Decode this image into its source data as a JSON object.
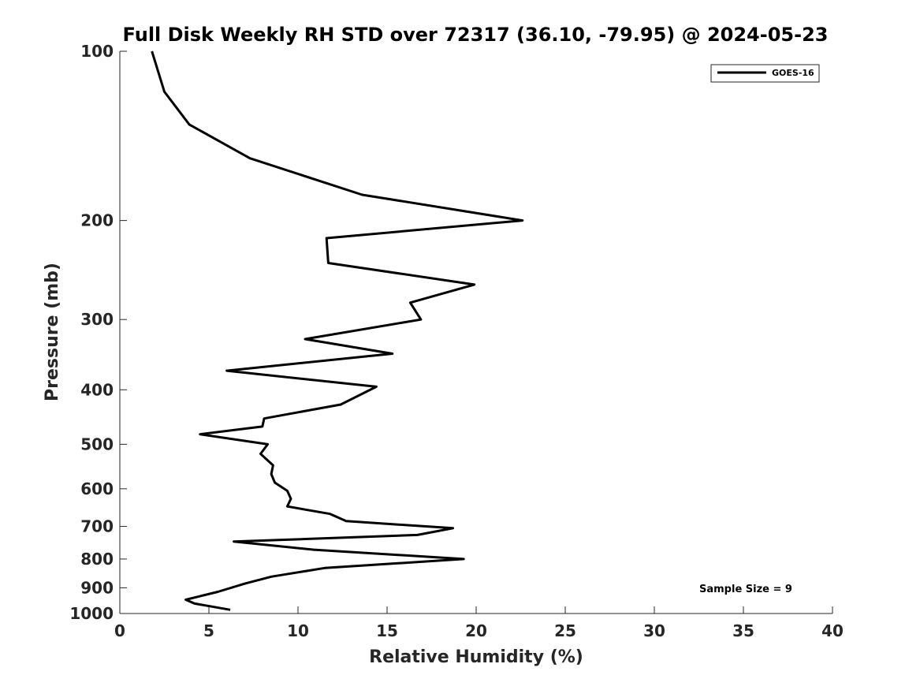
{
  "chart_data": {
    "type": "line",
    "title": "Full Disk Weekly RH STD over 72317 (36.10, -79.95) @ 2024-05-23",
    "xlabel": "Relative Humidity (%)",
    "ylabel": "Pressure (mb)",
    "xlim": [
      0,
      40
    ],
    "ylim": [
      1000,
      100
    ],
    "y_scale": "log",
    "y_reversed": true,
    "x_ticks": [
      "0",
      "5",
      "10",
      "15",
      "20",
      "25",
      "30",
      "35",
      "40"
    ],
    "y_ticks": [
      "100",
      "200",
      "300",
      "400",
      "500",
      "600",
      "700",
      "800",
      "900",
      "1000"
    ],
    "grid": false,
    "legend_position": "top-right",
    "series": [
      {
        "name": "GOES-16",
        "color": "#000000",
        "points": [
          [
            1.8,
            100
          ],
          [
            2.5,
            118
          ],
          [
            3.9,
            135
          ],
          [
            7.3,
            155
          ],
          [
            13.6,
            180
          ],
          [
            22.6,
            200
          ],
          [
            11.6,
            215
          ],
          [
            11.7,
            238
          ],
          [
            19.9,
            260
          ],
          [
            16.3,
            280
          ],
          [
            16.9,
            300
          ],
          [
            10.4,
            325
          ],
          [
            15.3,
            345
          ],
          [
            6.0,
            370
          ],
          [
            14.4,
            395
          ],
          [
            12.4,
            425
          ],
          [
            8.1,
            450
          ],
          [
            8.0,
            465
          ],
          [
            4.5,
            480
          ],
          [
            8.3,
            500
          ],
          [
            7.9,
            520
          ],
          [
            8.6,
            545
          ],
          [
            8.5,
            565
          ],
          [
            8.7,
            585
          ],
          [
            9.4,
            605
          ],
          [
            9.6,
            625
          ],
          [
            9.4,
            645
          ],
          [
            11.8,
            665
          ],
          [
            12.7,
            685
          ],
          [
            18.7,
            705
          ],
          [
            16.7,
            725
          ],
          [
            6.4,
            745
          ],
          [
            10.9,
            770
          ],
          [
            19.3,
            800
          ],
          [
            11.5,
            830
          ],
          [
            8.5,
            860
          ],
          [
            7.0,
            885
          ],
          [
            5.5,
            915
          ],
          [
            3.7,
            945
          ],
          [
            4.2,
            960
          ],
          [
            6.2,
            985
          ]
        ]
      }
    ],
    "annotation": "Sample Size = 9"
  }
}
